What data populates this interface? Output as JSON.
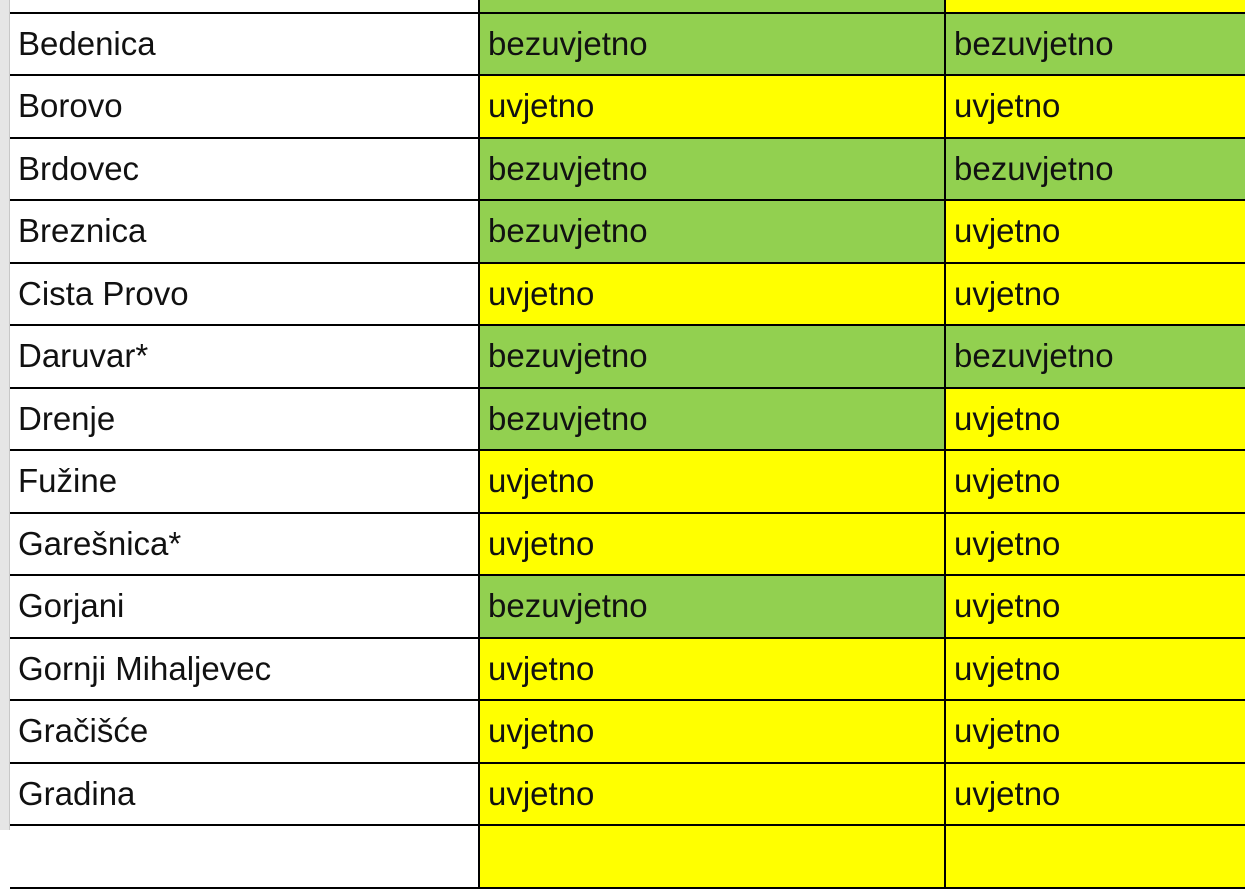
{
  "colors": {
    "bezuvjetno": "#92d050",
    "uvjetno": "#ffff00"
  },
  "top_partial_row": {
    "col2_color": "bezuvjetno",
    "col3_color": "uvjetno"
  },
  "rows": [
    {
      "name": "Bedenica",
      "col2": "bezuvjetno",
      "col3": "bezuvjetno"
    },
    {
      "name": "Borovo",
      "col2": "uvjetno",
      "col3": "uvjetno"
    },
    {
      "name": "Brdovec",
      "col2": "bezuvjetno",
      "col3": "bezuvjetno"
    },
    {
      "name": "Breznica",
      "col2": "bezuvjetno",
      "col3": "uvjetno"
    },
    {
      "name": "Cista Provo",
      "col2": "uvjetno",
      "col3": "uvjetno"
    },
    {
      "name": "Daruvar*",
      "col2": "bezuvjetno",
      "col3": "bezuvjetno"
    },
    {
      "name": "Drenje",
      "col2": "bezuvjetno",
      "col3": "uvjetno"
    },
    {
      "name": "Fužine",
      "col2": "uvjetno",
      "col3": "uvjetno"
    },
    {
      "name": "Garešnica*",
      "col2": "uvjetno",
      "col3": "uvjetno"
    },
    {
      "name": "Gorjani",
      "col2": "bezuvjetno",
      "col3": "uvjetno"
    },
    {
      "name": "Gornji Mihaljevec",
      "col2": "uvjetno",
      "col3": "uvjetno"
    },
    {
      "name": "Gračišće",
      "col2": "uvjetno",
      "col3": "uvjetno"
    },
    {
      "name": "Gradina",
      "col2": "uvjetno",
      "col3": "uvjetno"
    }
  ],
  "bottom_partial_row": {
    "col2_color": "uvjetno",
    "col3_color": "uvjetno"
  }
}
